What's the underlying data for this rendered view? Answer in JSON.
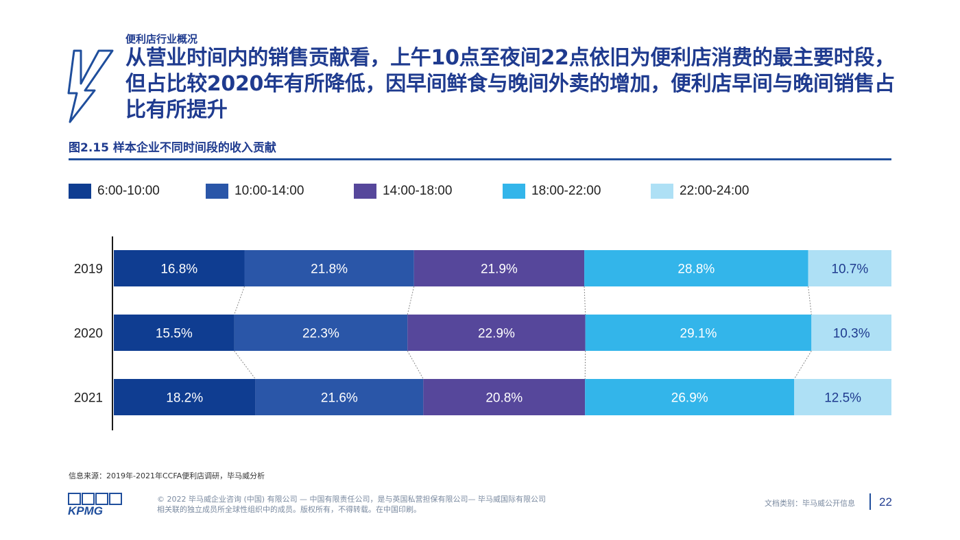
{
  "header": {
    "section": "便利店行业概况",
    "title": "从营业时间内的销售贡献看，上午10点至夜间22点依旧为便利店消费的最主要时段，但占比较2020年有所降低，因早间鲜食与晚间外卖的增加，便利店早间与晚间销售占比有所提升"
  },
  "figure": {
    "title": "图2.15 样本企业不同时间段的收入贡献"
  },
  "colors": {
    "s1": "#0f3d91",
    "s2": "#2a56a8",
    "s3": "#56479b",
    "s4": "#33b5ea",
    "s5": "#aee0f5",
    "text_dark": "#222222",
    "text_light": "#ffffff",
    "text_dark_blue": "#1f3b8f"
  },
  "chart_data": {
    "type": "bar",
    "orientation": "horizontal",
    "stacked": true,
    "normalized": true,
    "title": "图2.15 样本企业不同时间段的收入贡献",
    "categories": [
      "2019",
      "2020",
      "2021"
    ],
    "series": [
      {
        "name": "6:00-10:00",
        "values": [
          16.8,
          15.5,
          18.2
        ],
        "labels": [
          "16.8%",
          "15.5%",
          "18.2%"
        ]
      },
      {
        "name": "10:00-14:00",
        "values": [
          21.8,
          22.3,
          21.6
        ],
        "labels": [
          "21.8%",
          "22.3%",
          "21.6%"
        ]
      },
      {
        "name": "14:00-18:00",
        "values": [
          21.9,
          22.9,
          20.8
        ],
        "labels": [
          "21.9%",
          "22.9%",
          "20.8%"
        ]
      },
      {
        "name": "18:00-22:00",
        "values": [
          28.8,
          29.1,
          26.9
        ],
        "labels": [
          "28.8%",
          "29.1%",
          "26.9%"
        ]
      },
      {
        "name": "22:00-24:00",
        "values": [
          10.7,
          10.3,
          12.5
        ],
        "labels": [
          "10.7%",
          "10.3%",
          "12.5%"
        ]
      }
    ],
    "legend_position": "top",
    "xlim": [
      0,
      100
    ],
    "grid": false
  },
  "footer": {
    "source": "信息来源：2019年-2021年CCFA便利店调研，毕马威分析",
    "logo_text": "KPMG",
    "copyright_line1": "© 2022 毕马威企业咨询 (中国) 有限公司 — 中国有限责任公司，是与英国私营担保有限公司— 毕马威国际有限公司",
    "copyright_line2": "相关联的独立成员所全球性组织中的成员。版权所有，不得转载。在中国印刷。",
    "doc_class": "文档类别：毕马威公开信息",
    "page_number": "22"
  }
}
